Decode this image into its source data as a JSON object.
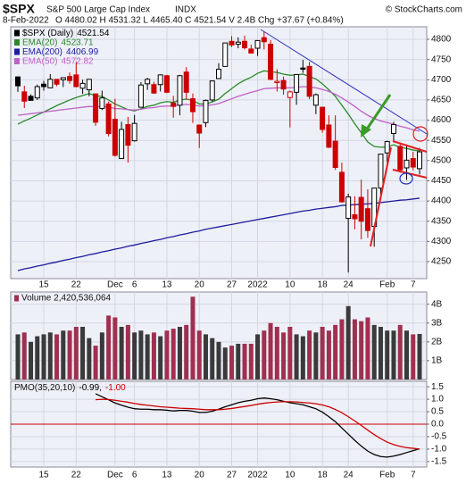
{
  "header": {
    "symbol": "$SPX",
    "name": "S&P 500 Large Cap Index",
    "exchange": "INDX",
    "source": "© StockCharts.com",
    "date": "8-Feb-2022",
    "quote": "O 4480.02 H 4531.32 L 4465.40 C 4521.54 V 2.4B Chg +37.67 (+0.84%)"
  },
  "chart_data": [
    {
      "type": "candlestick",
      "categories": [
        null,
        null,
        null,
        null,
        "15",
        null,
        null,
        null,
        null,
        "22",
        null,
        null,
        null,
        null,
        null,
        "Dec",
        null,
        null,
        "6",
        null,
        null,
        null,
        null,
        "13",
        null,
        null,
        null,
        null,
        "20",
        null,
        null,
        null,
        null,
        "27",
        null,
        null,
        null,
        "2022",
        null,
        null,
        null,
        null,
        "10",
        null,
        null,
        null,
        null,
        "18",
        null,
        null,
        null,
        "24",
        null,
        null,
        null,
        null,
        null,
        "Feb",
        null,
        null,
        null,
        "7",
        null
      ],
      "candles": {
        "name": "$SPX (Daily)",
        "open": [
          4707,
          4670,
          4659,
          4655,
          4689,
          4680,
          4701,
          4700,
          4708,
          4712,
          4679,
          4675,
          4665,
          4629,
          4640,
          4602,
          4505,
          4589,
          4549,
          4632,
          4690,
          4688,
          4688,
          4710,
          4642,
          4637,
          4719,
          4653,
          4588,
          4594,
          4650,
          4703,
          4733,
          4795,
          4788,
          4795,
          4776,
          4778,
          4804,
          4788,
          4693,
          4698,
          4656,
          4669,
          4729,
          4733,
          4637,
          4632,
          4588,
          4548,
          4471,
          4357,
          4366,
          4409,
          4381,
          4337,
          4432,
          4519,
          4567,
          4535,
          4482,
          4505,
          4480.02
        ],
        "high": [
          4708,
          4685,
          4664,
          4688,
          4697,
          4714,
          4701,
          4705,
          4718,
          4744,
          4700,
          4702,
          4665,
          4673,
          4646,
          4653,
          4596,
          4608,
          4613,
          4694,
          4705,
          4695,
          4713,
          4712,
          4660,
          4712,
          4731,
          4666,
          4588,
          4651,
          4698,
          4741,
          4791,
          4808,
          4805,
          4809,
          4787,
          4797,
          4819,
          4798,
          4726,
          4708,
          4673,
          4714,
          4749,
          4744,
          4666,
          4632,
          4612,
          4612,
          4495,
          4418,
          4412,
          4453,
          4429,
          4432,
          4516,
          4549,
          4596,
          4541,
          4540,
          4522,
          4531.32
        ],
        "low": [
          4670,
          4630,
          4648,
          4650,
          4673,
          4679,
          4684,
          4682,
          4690,
          4681,
          4665,
          4659,
          4586,
          4625,
          4560,
          4510,
          4504,
          4495,
          4547,
          4632,
          4675,
          4665,
          4671,
          4667,
          4606,
          4612,
          4651,
          4593,
          4531,
          4583,
          4645,
          4703,
          4733,
          4781,
          4778,
          4775,
          4766,
          4759,
          4775,
          4699,
          4671,
          4663,
          4582,
          4638,
          4717,
          4652,
          4615,
          4569,
          4531,
          4477,
          4396,
          4223,
          4330,
          4305,
          4309,
          4287,
          4415,
          4495,
          4545,
          4470,
          4452,
          4476,
          4465.4
        ],
        "close": [
          4685,
          4647,
          4649,
          4683,
          4683,
          4701,
          4689,
          4705,
          4698,
          4683,
          4691,
          4701,
          4595,
          4655,
          4567,
          4513,
          4577,
          4538,
          4592,
          4687,
          4701,
          4667,
          4712,
          4669,
          4634,
          4710,
          4669,
          4621,
          4568,
          4649,
          4697,
          4726,
          4791,
          4786,
          4793,
          4779,
          4766,
          4797,
          4794,
          4701,
          4696,
          4677,
          4670,
          4713,
          4726,
          4659,
          4663,
          4577,
          4533,
          4483,
          4398,
          4410,
          4356,
          4350,
          4327,
          4432,
          4516,
          4547,
          4589,
          4477,
          4501,
          4484,
          4521.54
        ]
      },
      "series": [
        {
          "name": "EMA(20)",
          "color": "#2a8a2a",
          "values": [
            4590,
            4598,
            4605,
            4613,
            4620,
            4628,
            4636,
            4643,
            4650,
            4656,
            4661,
            4666,
            4660,
            4659,
            4650,
            4640,
            4633,
            4626,
            4623,
            4628,
            4634,
            4637,
            4643,
            4646,
            4644,
            4650,
            4652,
            4649,
            4640,
            4640,
            4645,
            4652,
            4666,
            4678,
            4690,
            4699,
            4706,
            4716,
            4722,
            4720,
            4718,
            4714,
            4711,
            4712,
            4714,
            4708,
            4702,
            4690,
            4675,
            4659,
            4637,
            4615,
            4591,
            4569,
            4546,
            4535,
            4533,
            4534,
            4539,
            4533,
            4530,
            4526,
            4523.71
          ]
        },
        {
          "name": "EMA(200)",
          "color": "#1c1c9c",
          "values": [
            4228,
            4232,
            4235,
            4239,
            4242,
            4246,
            4249,
            4253,
            4256,
            4260,
            4263,
            4267,
            4270,
            4274,
            4277,
            4281,
            4284,
            4288,
            4291,
            4295,
            4298,
            4302,
            4305,
            4309,
            4312,
            4316,
            4319,
            4323,
            4326,
            4330,
            4333,
            4336,
            4339,
            4342,
            4345,
            4348,
            4351,
            4354,
            4357,
            4360,
            4363,
            4366,
            4369,
            4372,
            4375,
            4377,
            4380,
            4382,
            4384,
            4386,
            4389,
            4390,
            4391,
            4392,
            4393,
            4394,
            4396,
            4398,
            4400,
            4402,
            4403,
            4405,
            4406.99
          ]
        },
        {
          "name": "EMA(50)",
          "color": "#c060c8",
          "values": [
            4612,
            4614,
            4616,
            4618,
            4620,
            4622,
            4624,
            4626,
            4628,
            4630,
            4632,
            4634,
            4633,
            4634,
            4632,
            4629,
            4628,
            4626,
            4625,
            4627,
            4630,
            4631,
            4634,
            4635,
            4635,
            4638,
            4639,
            4638,
            4635,
            4636,
            4638,
            4641,
            4647,
            4653,
            4659,
            4664,
            4669,
            4673,
            4678,
            4679,
            4680,
            4680,
            4680,
            4681,
            4683,
            4682,
            4680,
            4676,
            4671,
            4664,
            4655,
            4645,
            4634,
            4622,
            4612,
            4604,
            4598,
            4594,
            4590,
            4585,
            4581,
            4576,
            4572.82
          ]
        }
      ],
      "up_color": "#000000",
      "down_color": "#cc0000",
      "ylim": [
        4208,
        4831
      ],
      "yticks": [
        4800,
        4750,
        4700,
        4650,
        4600,
        4550,
        4500,
        4450,
        4400,
        4350,
        4300,
        4250
      ],
      "grid": true
    },
    {
      "type": "bar",
      "title": "Volume 2,420,536,064",
      "values": [
        2.4,
        2.5,
        2.0,
        2.3,
        2.4,
        2.5,
        2.4,
        2.6,
        2.6,
        2.8,
        2.8,
        2.2,
        1.8,
        2.5,
        3.4,
        3.3,
        2.8,
        2.9,
        2.5,
        2.6,
        2.4,
        2.5,
        2.3,
        2.6,
        2.7,
        2.8,
        2.9,
        4.4,
        2.6,
        2.4,
        2.2,
        2.0,
        1.7,
        1.8,
        1.9,
        1.9,
        1.9,
        2.4,
        2.6,
        3.0,
        2.8,
        2.5,
        2.8,
        2.4,
        2.3,
        2.6,
        2.5,
        2.8,
        2.6,
        2.9,
        3.2,
        3.9,
        3.2,
        3.1,
        3.3,
        2.9,
        2.8,
        2.6,
        2.6,
        2.9,
        2.6,
        2.4,
        2.420536064
      ],
      "up_color": "#3a3a3a",
      "down_color": "#a03050",
      "ylim": [
        0,
        4.65
      ],
      "yticks": [
        {
          "value": 4,
          "label": "4B"
        },
        {
          "value": 3,
          "label": "3B"
        },
        {
          "value": 2,
          "label": "2B"
        },
        {
          "value": 1,
          "label": "1B"
        }
      ],
      "grid": true
    },
    {
      "type": "line",
      "title": "PMO(35,20,10)",
      "readouts": [
        "-0.99,",
        "-1.00"
      ],
      "series": [
        {
          "color": "#000000",
          "values": [
            null,
            null,
            null,
            null,
            null,
            null,
            null,
            null,
            null,
            null,
            null,
            null,
            1.22,
            1.1,
            0.98,
            0.85,
            0.76,
            0.68,
            0.62,
            0.6,
            0.6,
            0.58,
            0.58,
            0.56,
            0.53,
            0.55,
            0.55,
            0.52,
            0.47,
            0.47,
            0.52,
            0.6,
            0.7,
            0.78,
            0.86,
            0.92,
            0.96,
            1.02,
            1.05,
            1.02,
            0.98,
            0.92,
            0.86,
            0.82,
            0.78,
            0.7,
            0.62,
            0.48,
            0.3,
            0.1,
            -0.15,
            -0.4,
            -0.65,
            -0.88,
            -1.08,
            -1.22,
            -1.3,
            -1.32,
            -1.28,
            -1.22,
            -1.14,
            -1.06,
            -0.99
          ]
        },
        {
          "color": "#cc0000",
          "values": [
            null,
            null,
            null,
            null,
            null,
            null,
            null,
            null,
            null,
            null,
            null,
            null,
            0.98,
            1.0,
            0.99,
            0.96,
            0.92,
            0.88,
            0.83,
            0.79,
            0.76,
            0.73,
            0.7,
            0.68,
            0.66,
            0.64,
            0.63,
            0.62,
            0.6,
            0.58,
            0.58,
            0.58,
            0.6,
            0.63,
            0.67,
            0.71,
            0.75,
            0.8,
            0.84,
            0.87,
            0.89,
            0.9,
            0.9,
            0.89,
            0.87,
            0.85,
            0.82,
            0.77,
            0.7,
            0.59,
            0.46,
            0.3,
            0.13,
            -0.05,
            -0.24,
            -0.42,
            -0.58,
            -0.72,
            -0.82,
            -0.89,
            -0.94,
            -0.97,
            -1.0
          ]
        }
      ],
      "hline": {
        "value": 0,
        "color": "#cc0000"
      },
      "ylim": [
        -1.72,
        1.72
      ],
      "yticks": [
        1.5,
        {
          "value": 1,
          "label": "1.0"
        },
        0.5,
        {
          "value": 0,
          "label": "0.0"
        },
        -0.5,
        {
          "value": -1,
          "label": "-1.0"
        },
        -1.5
      ],
      "grid": true
    }
  ]
}
